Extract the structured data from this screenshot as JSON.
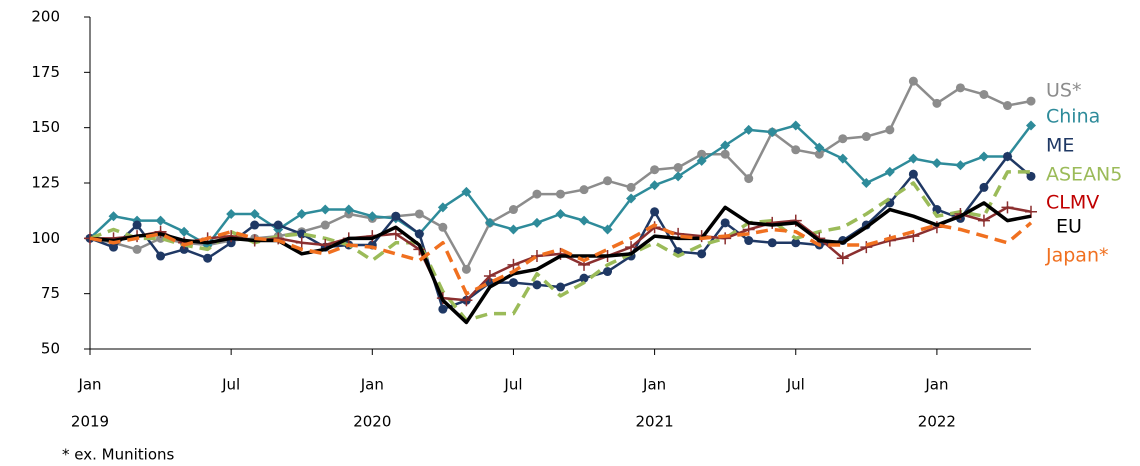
{
  "chart_data": {
    "type": "line",
    "categories": [
      "Jan",
      null,
      null,
      null,
      null,
      null,
      "Jul",
      null,
      null,
      null,
      null,
      null,
      "Jan",
      null,
      null,
      null,
      null,
      null,
      "Jul",
      null,
      null,
      null,
      null,
      null,
      "Jan",
      null,
      null,
      null,
      null,
      null,
      "Jul",
      null,
      null,
      null,
      null,
      null,
      "Jan",
      null,
      null,
      null,
      null
    ],
    "years": [
      "2019",
      "2020",
      "2021",
      "2022"
    ],
    "ylim": [
      50,
      200
    ],
    "yticks": [
      50,
      75,
      100,
      125,
      150,
      175,
      200
    ],
    "footnote": "* ex. Munitions",
    "series": [
      {
        "name": "US*",
        "color": "#8c8c8c",
        "label_color": "#8c8c8c",
        "marker": "circle",
        "dashed": false,
        "values": [
          100,
          98,
          95,
          100,
          98,
          97,
          99,
          100,
          101,
          103,
          106,
          111,
          109,
          110,
          111,
          105,
          86,
          107,
          113,
          120,
          120,
          122,
          126,
          123,
          131,
          132,
          138,
          138,
          127,
          148,
          140,
          138,
          145,
          146,
          149,
          171,
          161,
          168,
          165,
          160,
          162
        ]
      },
      {
        "name": "China",
        "color": "#2e8b9a",
        "label_color": "#2e8b9a",
        "marker": "diamond",
        "dashed": false,
        "values": [
          100,
          110,
          108,
          108,
          103,
          97,
          111,
          111,
          104,
          111,
          113,
          113,
          110,
          109,
          102,
          114,
          121,
          107,
          104,
          107,
          111,
          108,
          104,
          118,
          124,
          128,
          135,
          142,
          149,
          148,
          151,
          141,
          136,
          125,
          130,
          136,
          134,
          133,
          137,
          137,
          151
        ]
      },
      {
        "name": "ME",
        "color": "#1f3864",
        "label_color": "#1f3864",
        "marker": "circle",
        "dashed": false,
        "values": [
          100,
          96,
          106,
          92,
          95,
          91,
          98,
          106,
          106,
          102,
          96,
          97,
          97,
          110,
          102,
          68,
          72,
          80,
          80,
          79,
          78,
          82,
          85,
          92,
          112,
          94,
          93,
          107,
          99,
          98,
          98,
          97,
          99,
          106,
          116,
          129,
          113,
          109,
          123,
          137,
          128
        ]
      },
      {
        "name": "ASEAN5",
        "color": "#9bbb59",
        "label_color": "#9bbb59",
        "marker": null,
        "dashed": true,
        "values": [
          100,
          104,
          100,
          100,
          97,
          95,
          103,
          98,
          101,
          102,
          100,
          97,
          90,
          98,
          98,
          76,
          63,
          66,
          66,
          84,
          74,
          80,
          88,
          93,
          98,
          92,
          97,
          100,
          107,
          108,
          100,
          103,
          105,
          111,
          118,
          125,
          110,
          112,
          110,
          130,
          130
        ]
      },
      {
        "name": "CLMV",
        "color": "#8b2f2f",
        "label_color": "#c00000",
        "marker": "plus",
        "dashed": false,
        "values": [
          100,
          100,
          101,
          103,
          98,
          100,
          101,
          99,
          100,
          98,
          97,
          100,
          101,
          102,
          95,
          73,
          72,
          83,
          88,
          92,
          93,
          88,
          92,
          96,
          105,
          102,
          101,
          100,
          104,
          107,
          108,
          100,
          91,
          96,
          99,
          101,
          105,
          111,
          108,
          114,
          112
        ]
      },
      {
        "name": "EU",
        "color": "#000000",
        "label_color": "#000000",
        "marker": null,
        "dashed": false,
        "values": [
          100,
          99,
          101,
          102,
          99,
          98,
          100,
          99,
          99,
          93,
          95,
          100,
          100,
          105,
          97,
          72,
          62,
          78,
          84,
          86,
          92,
          92,
          92,
          93,
          101,
          100,
          100,
          114,
          107,
          106,
          107,
          99,
          98,
          105,
          113,
          110,
          106,
          110,
          116,
          108,
          110
        ]
      },
      {
        "name": "Japan*",
        "color": "#f07020",
        "label_color": "#f07020",
        "marker": null,
        "dashed": true,
        "values": [
          100,
          98,
          100,
          102,
          97,
          100,
          103,
          100,
          99,
          95,
          93,
          97,
          96,
          93,
          90,
          98,
          75,
          80,
          85,
          92,
          95,
          90,
          95,
          100,
          106,
          101,
          100,
          101,
          102,
          104,
          103,
          97,
          97,
          97,
          100,
          103,
          106,
          104,
          101,
          98,
          107
        ]
      }
    ]
  }
}
